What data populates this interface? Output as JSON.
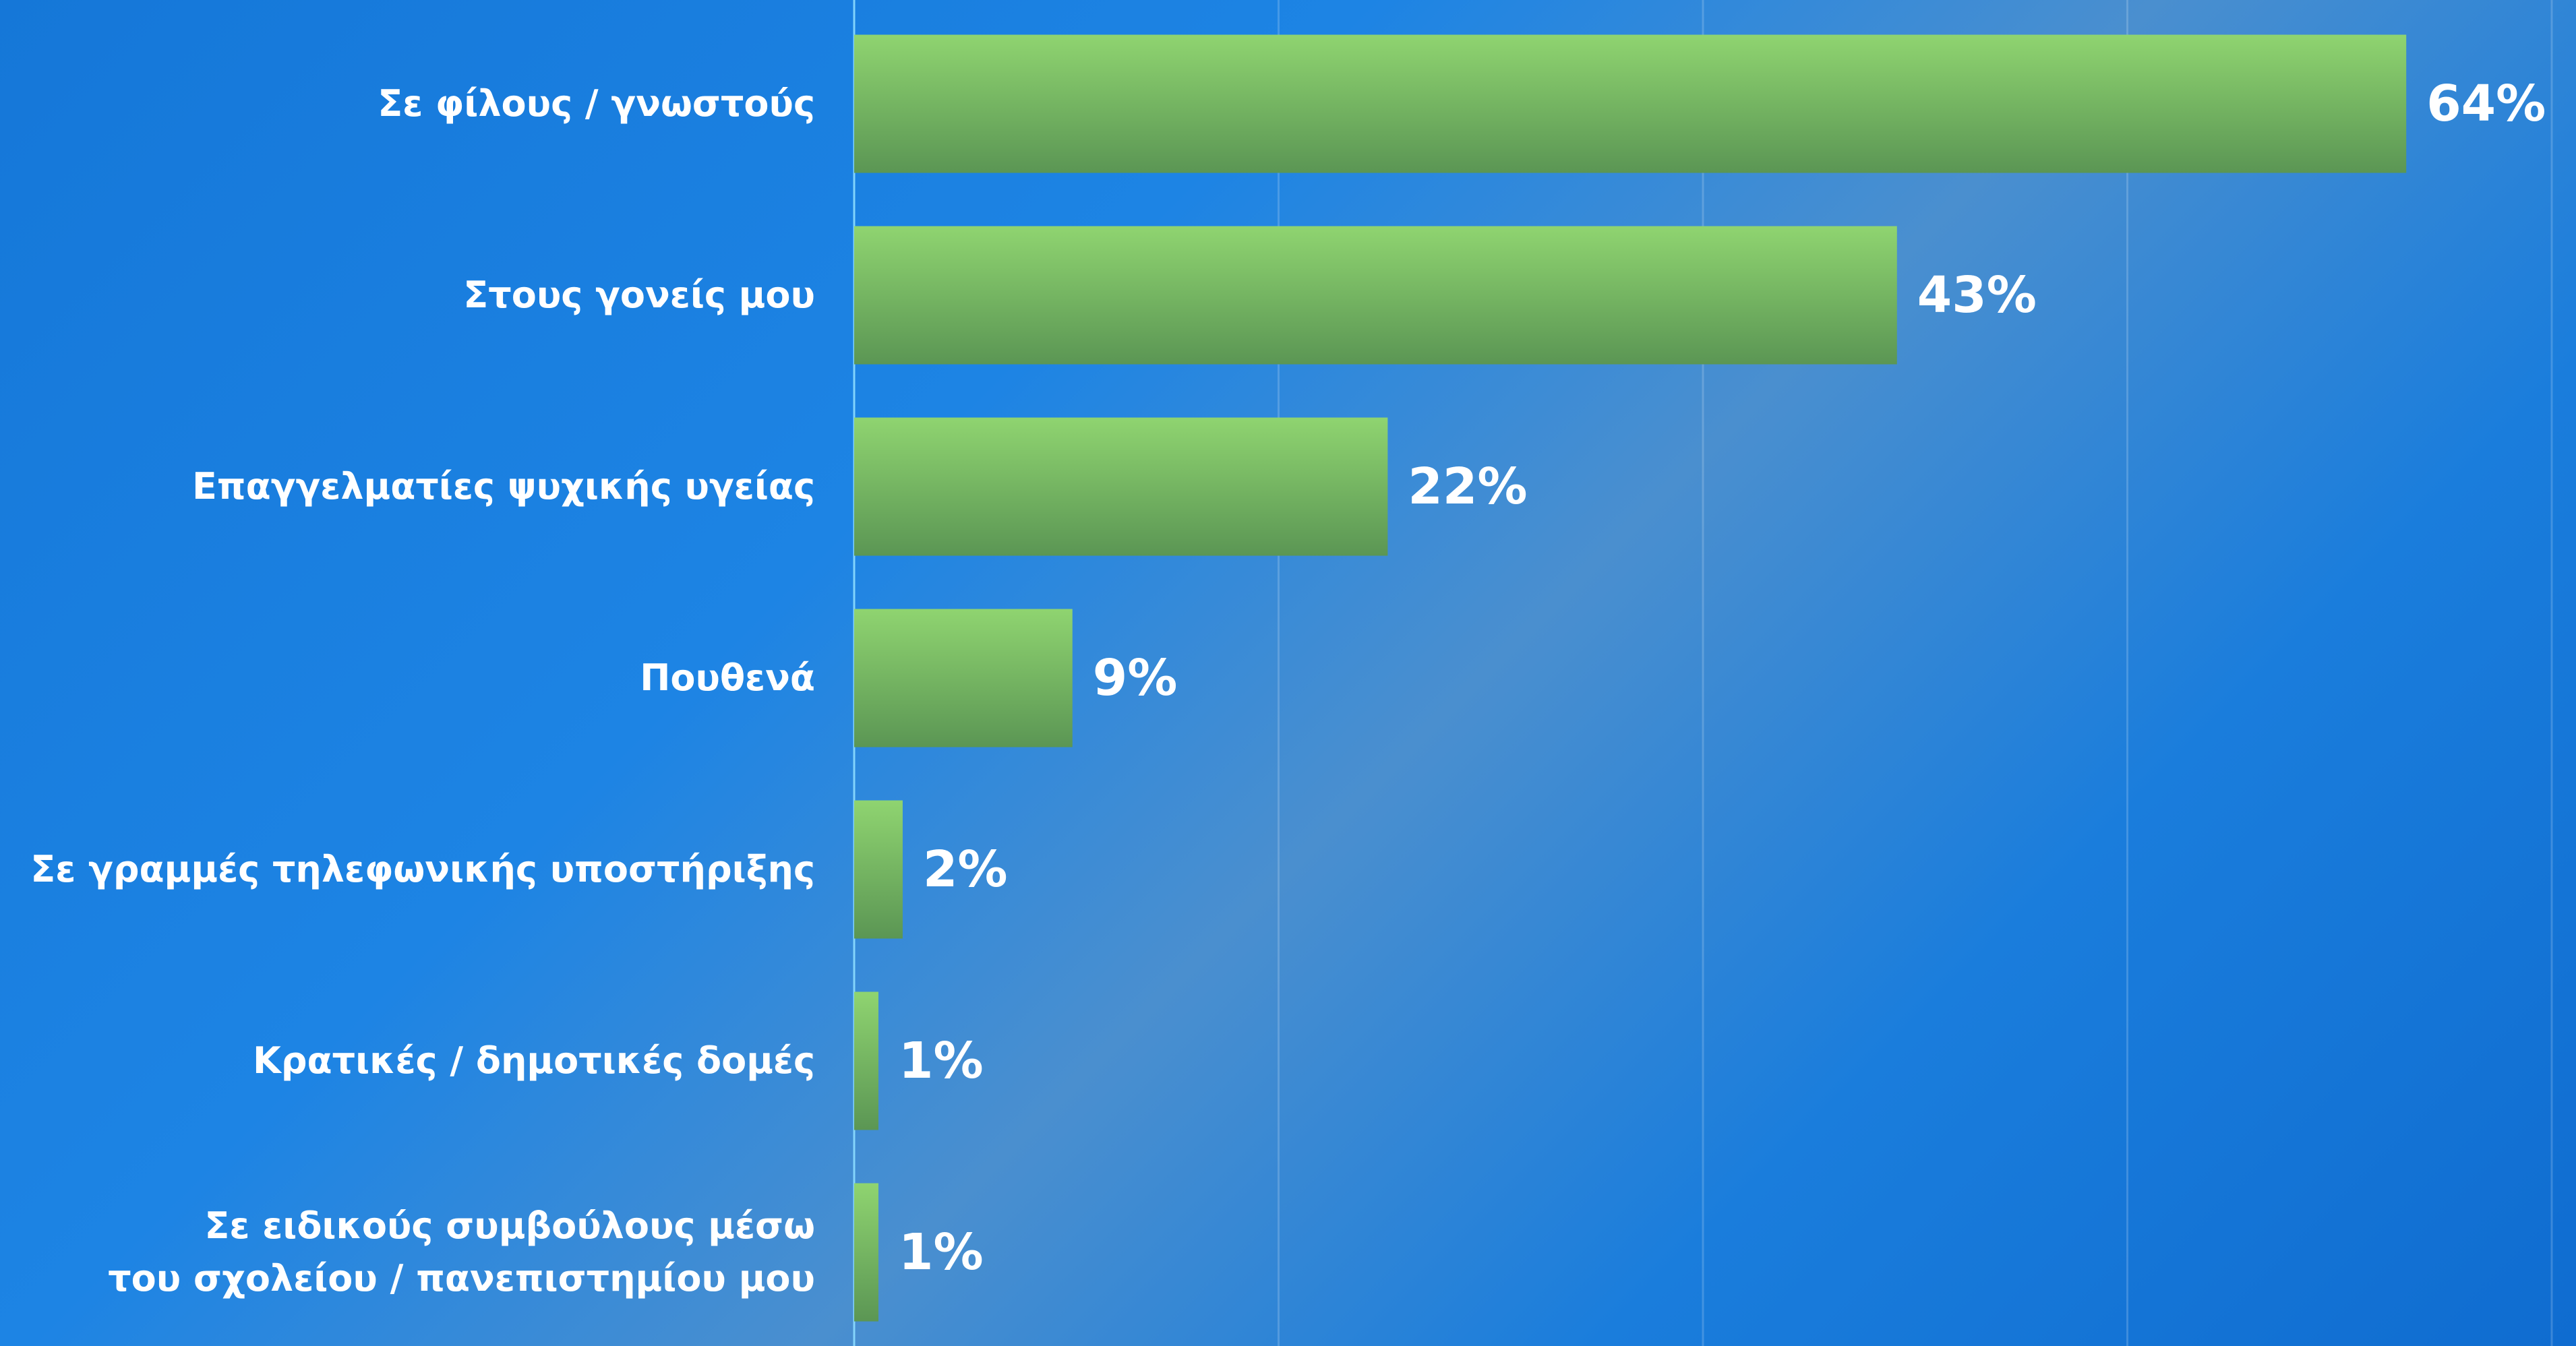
{
  "chart_data": {
    "type": "bar",
    "orientation": "horizontal",
    "categories": [
      "Σε φίλους / γνωστούς",
      "Στους γονείς μου",
      "Επαγγελματίες ψυχικής υγείας",
      "Πουθενά",
      "Σε γραμμές τηλεφωνικής υποστήριξης",
      "Κρατικές / δημοτικές δομές",
      "Σε ειδικούς συμβούλους μέσω\nτου σχολείου / πανεπιστημίου μου"
    ],
    "values": [
      64,
      43,
      22,
      9,
      2,
      1,
      1
    ],
    "value_labels": [
      "64%",
      "43%",
      "22%",
      "9%",
      "2%",
      "1%",
      "1%"
    ],
    "color": [
      "#8fd470",
      "#5b9654"
    ],
    "xlim": [
      0,
      71
    ],
    "xticks": [
      0,
      17.5,
      35,
      52.5,
      70
    ],
    "grid": true
  }
}
